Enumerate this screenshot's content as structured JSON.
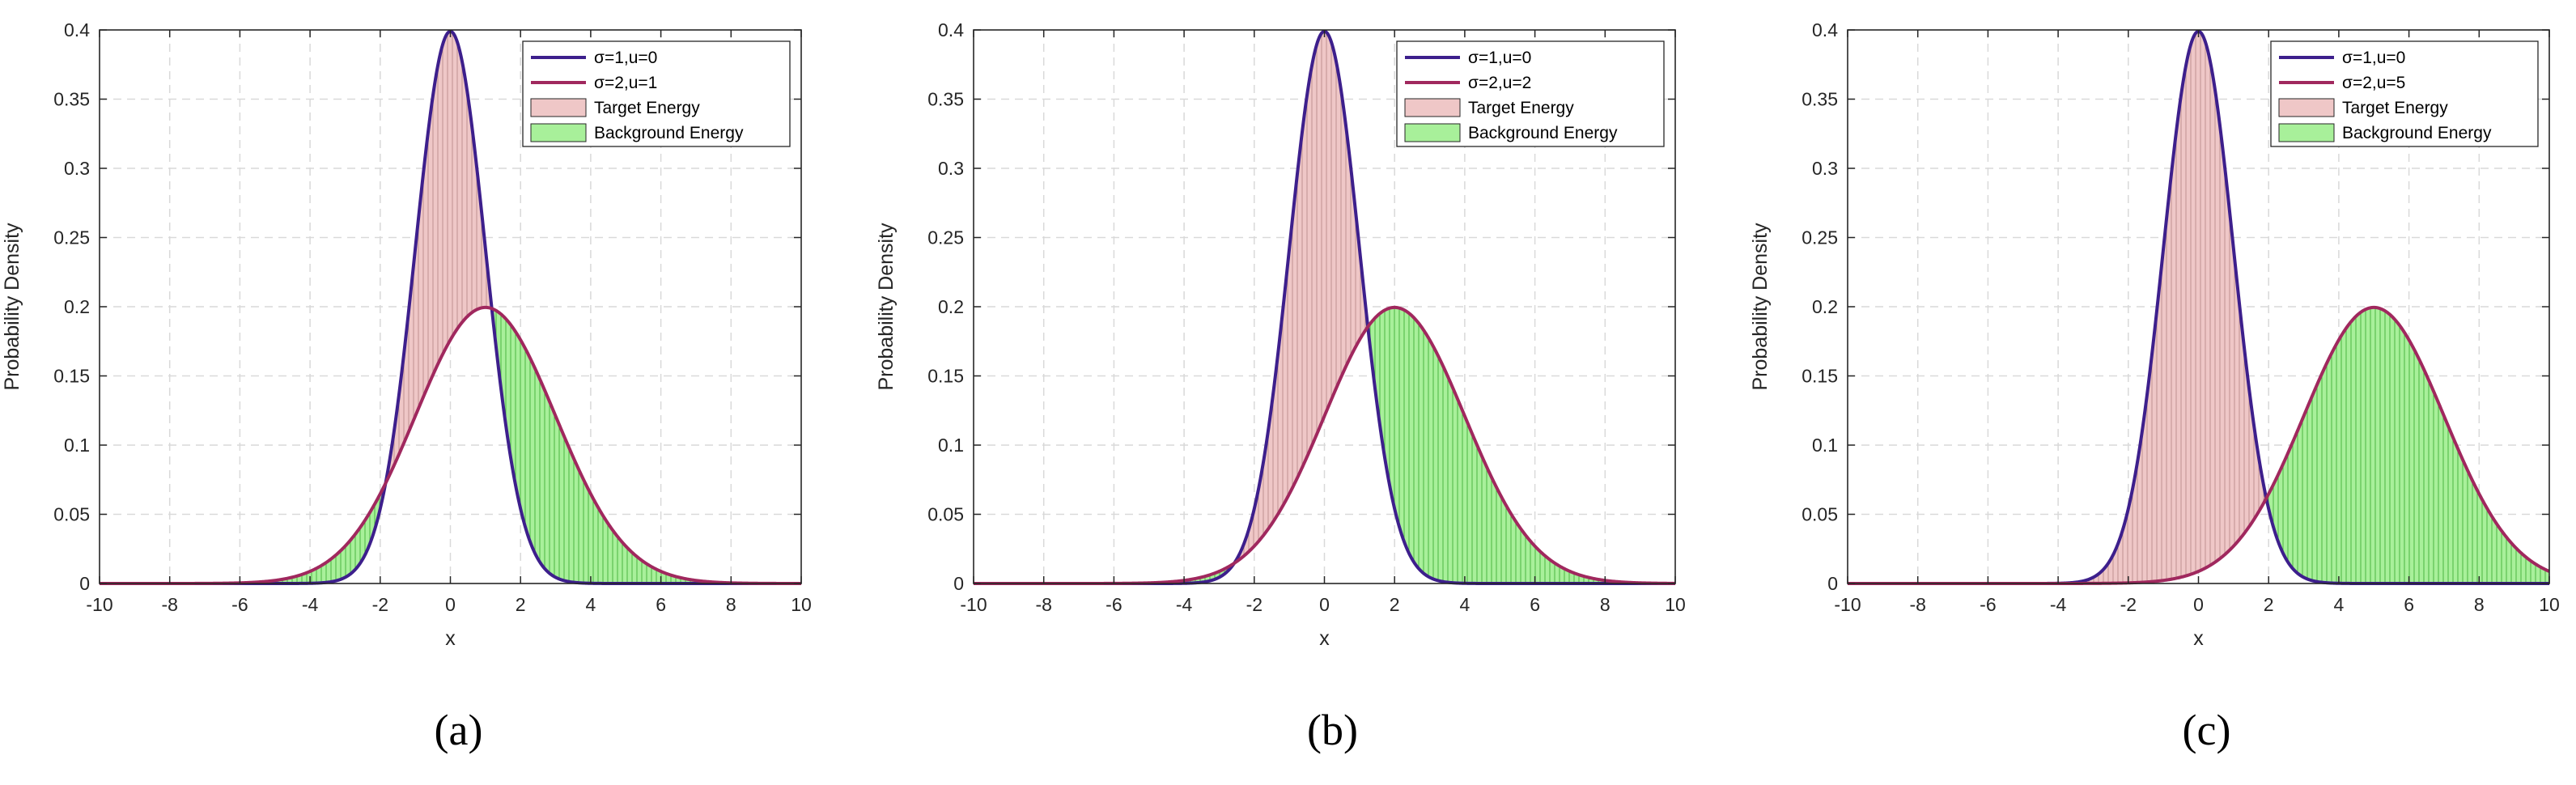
{
  "chart_data": [
    {
      "type": "line",
      "panel_caption": "(a)",
      "xlabel": "x",
      "ylabel": "Probability Density",
      "xlim": [
        -10,
        10
      ],
      "ylim": [
        0,
        0.4
      ],
      "xticks": [
        "-10",
        "-8",
        "-6",
        "-4",
        "-2",
        "0",
        "2",
        "4",
        "6",
        "8",
        "10"
      ],
      "yticks": [
        "0",
        "0.05",
        "0.1",
        "0.15",
        "0.2",
        "0.25",
        "0.3",
        "0.35",
        "0.4"
      ],
      "grid": true,
      "legend_position": "top-right",
      "series": [
        {
          "name": "σ=1,u=0",
          "kind": "normal-pdf",
          "mu": 0,
          "sigma": 1,
          "color": "#3d1f8c"
        },
        {
          "name": "σ=2,u=1",
          "kind": "normal-pdf",
          "mu": 1,
          "sigma": 2,
          "color": "#a0285e"
        }
      ],
      "fills": [
        {
          "name": "Target Energy",
          "rule": "first series above second",
          "color": "#efc7c7",
          "hatch": "#b88a8a"
        },
        {
          "name": "Background Energy",
          "rule": "second series above first",
          "color": "#a8f09a",
          "hatch": "#3fae35"
        }
      ]
    },
    {
      "type": "line",
      "panel_caption": "(b)",
      "xlabel": "x",
      "ylabel": "Probability Density",
      "xlim": [
        -10,
        10
      ],
      "ylim": [
        0,
        0.4
      ],
      "xticks": [
        "-10",
        "-8",
        "-6",
        "-4",
        "-2",
        "0",
        "2",
        "4",
        "6",
        "8",
        "10"
      ],
      "yticks": [
        "0",
        "0.05",
        "0.1",
        "0.15",
        "0.2",
        "0.25",
        "0.3",
        "0.35",
        "0.4"
      ],
      "grid": true,
      "legend_position": "top-right",
      "series": [
        {
          "name": "σ=1,u=0",
          "kind": "normal-pdf",
          "mu": 0,
          "sigma": 1,
          "color": "#3d1f8c"
        },
        {
          "name": "σ=2,u=2",
          "kind": "normal-pdf",
          "mu": 2,
          "sigma": 2,
          "color": "#a0285e"
        }
      ],
      "fills": [
        {
          "name": "Target Energy",
          "rule": "first series above second",
          "color": "#efc7c7",
          "hatch": "#b88a8a"
        },
        {
          "name": "Background Energy",
          "rule": "second series above first",
          "color": "#a8f09a",
          "hatch": "#3fae35"
        }
      ]
    },
    {
      "type": "line",
      "panel_caption": "(c)",
      "xlabel": "x",
      "ylabel": "Probability Density",
      "xlim": [
        -10,
        10
      ],
      "ylim": [
        0,
        0.4
      ],
      "xticks": [
        "-10",
        "-8",
        "-6",
        "-4",
        "-2",
        "0",
        "2",
        "4",
        "6",
        "8",
        "10"
      ],
      "yticks": [
        "0",
        "0.05",
        "0.1",
        "0.15",
        "0.2",
        "0.25",
        "0.3",
        "0.35",
        "0.4"
      ],
      "grid": true,
      "legend_position": "top-right",
      "series": [
        {
          "name": "σ=1,u=0",
          "kind": "normal-pdf",
          "mu": 0,
          "sigma": 1,
          "color": "#3d1f8c"
        },
        {
          "name": "σ=2,u=5",
          "kind": "normal-pdf",
          "mu": 5,
          "sigma": 2,
          "color": "#a0285e"
        }
      ],
      "fills": [
        {
          "name": "Target Energy",
          "rule": "first series above second",
          "color": "#efc7c7",
          "hatch": "#b88a8a"
        },
        {
          "name": "Background Energy",
          "rule": "second series above first",
          "color": "#a8f09a",
          "hatch": "#3fae35"
        }
      ]
    }
  ]
}
